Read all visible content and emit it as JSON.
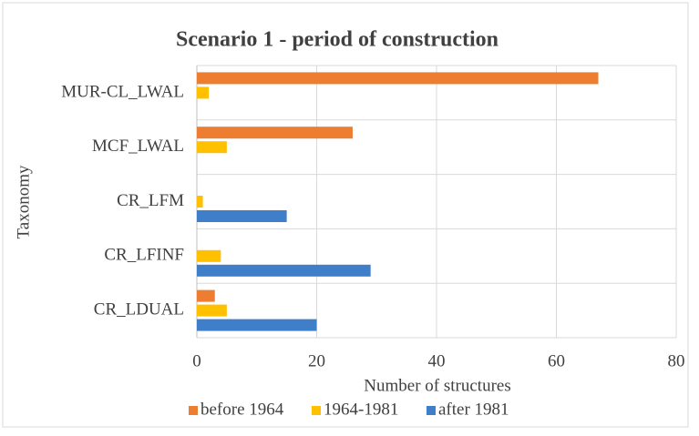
{
  "chart_data": {
    "type": "bar",
    "orientation": "horizontal",
    "title": "Scenario 1 - period of construction",
    "x_label": "Number of structures",
    "y_label": "Taxonomy",
    "categories": [
      "MUR-CL_LWAL",
      "MCF_LWAL",
      "CR_LFM",
      "CR_LFINF",
      "CR_LDUAL"
    ],
    "series": [
      {
        "name": "before 1964",
        "color": "#ED7D31",
        "values": [
          67,
          26,
          0,
          0,
          3
        ]
      },
      {
        "name": "1964-1981",
        "color": "#FFC000",
        "values": [
          2,
          5,
          1,
          4,
          5
        ]
      },
      {
        "name": "after 1981",
        "color": "#3F7FCA",
        "values": [
          0,
          0,
          15,
          29,
          20
        ]
      }
    ],
    "xlim": [
      0,
      80
    ],
    "xticks": [
      0,
      20,
      40,
      60,
      80
    ],
    "grid": true,
    "legend": "bottom"
  }
}
